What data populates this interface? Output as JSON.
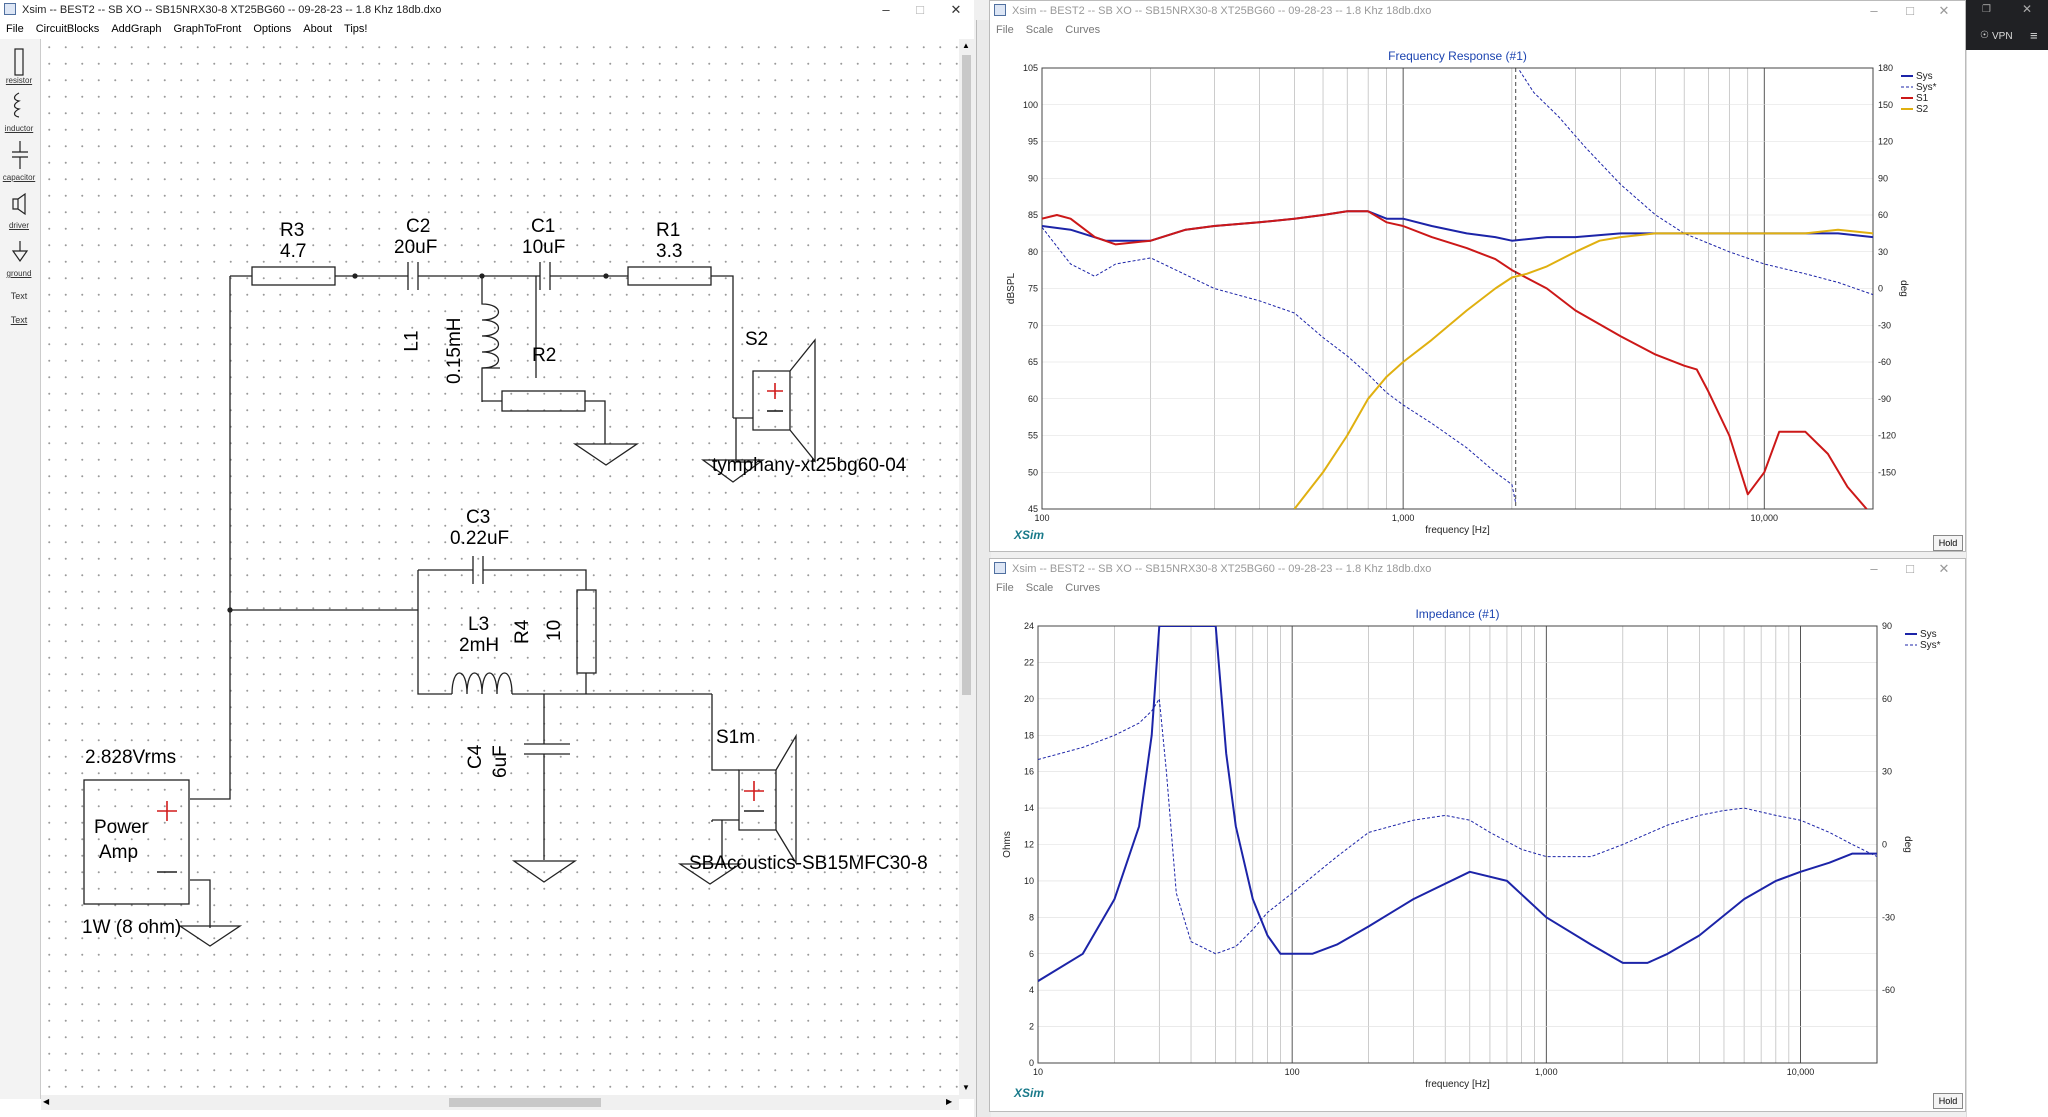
{
  "schematic_window": {
    "title": "Xsim -- BEST2 -- SB XO -- SB15NRX30-8 XT25BG60 -- 09-28-23 -- 1.8 Khz 18db.dxo",
    "menu": [
      "File",
      "CircuitBlocks",
      "AddGraph",
      "GraphToFront",
      "Options",
      "About",
      "Tips!"
    ],
    "tools": [
      "resistor",
      "inductor",
      "capacitor",
      "driver",
      "ground",
      "Text",
      "Text"
    ],
    "components": {
      "r3": {
        "name": "R3",
        "value": "4.7"
      },
      "c2": {
        "name": "C2",
        "value": "20uF"
      },
      "c1": {
        "name": "C1",
        "value": "10uF"
      },
      "r1": {
        "name": "R1",
        "value": "3.3"
      },
      "l1": {
        "name": "L1",
        "value": "0.15mH"
      },
      "r2": {
        "name": "R2"
      },
      "s2": {
        "name": "S2",
        "model": "tymphany-xt25bg60-04"
      },
      "c3": {
        "name": "C3",
        "value": "0.22uF"
      },
      "l3": {
        "name": "L3",
        "value": "2mH"
      },
      "r4": {
        "name": "R4",
        "value": "10"
      },
      "c4": {
        "name": "C4",
        "value": "6uF"
      },
      "s1m": {
        "name": "S1m",
        "model": "SBAcoustics-SB15MFC30-8"
      },
      "amp": {
        "voltage": "2.828Vrms",
        "label1": "Power",
        "label2": "Amp",
        "power": "1W (8 ohm)"
      }
    }
  },
  "freq_window": {
    "title": "Xsim -- BEST2 -- SB XO -- SB15NRX30-8 XT25BG60 -- 09-28-23 -- 1.8 Khz 18db.dxo",
    "menu": [
      "File",
      "Scale",
      "Curves"
    ],
    "hold_label": "Hold",
    "brand": "XSim"
  },
  "imp_window": {
    "title": "Xsim -- BEST2 -- SB XO -- SB15NRX30-8 XT25BG60 -- 09-28-23 -- 1.8 Khz 18db.dxo",
    "menu": [
      "File",
      "Scale",
      "Curves"
    ],
    "hold_label": "Hold",
    "brand": "XSim"
  },
  "right_strip": {
    "vpn_label": "VPN"
  },
  "chart_data": [
    {
      "type": "line",
      "title": "Frequency Response (#1)",
      "xlabel": "frequency [Hz]",
      "ylabel": "dBSPL",
      "y2label": "deg",
      "xscale": "log",
      "xlim": [
        100,
        20000
      ],
      "ylim": [
        45,
        105
      ],
      "y2lim": [
        -180,
        180
      ],
      "xticks": [
        {
          "v": 100,
          "label": "100"
        },
        {
          "v": 1000,
          "label": "1,000"
        },
        {
          "v": 10000,
          "label": "10,000"
        }
      ],
      "yticks": [
        45,
        50,
        55,
        60,
        65,
        70,
        75,
        80,
        85,
        90,
        95,
        100,
        105
      ],
      "y2ticks": [
        -150,
        -120,
        -90,
        -60,
        -30,
        0,
        30,
        60,
        90,
        120,
        150,
        180
      ],
      "grid": true,
      "legend": "top-right",
      "series": [
        {
          "name": "Sys",
          "color": "#1c24a8",
          "axis": "left",
          "width": 2,
          "points": [
            [
              100,
              83.5
            ],
            [
              120,
              83
            ],
            [
              150,
              81.5
            ],
            [
              200,
              81.5
            ],
            [
              250,
              83
            ],
            [
              300,
              83.5
            ],
            [
              400,
              84
            ],
            [
              500,
              84.5
            ],
            [
              600,
              85
            ],
            [
              700,
              85.5
            ],
            [
              800,
              85.5
            ],
            [
              900,
              84.5
            ],
            [
              1000,
              84.5
            ],
            [
              1200,
              83.5
            ],
            [
              1500,
              82.5
            ],
            [
              1800,
              82
            ],
            [
              2000,
              81.5
            ],
            [
              2500,
              82
            ],
            [
              3000,
              82
            ],
            [
              4000,
              82.5
            ],
            [
              5000,
              82.5
            ],
            [
              6000,
              82.5
            ],
            [
              8000,
              82.5
            ],
            [
              10000,
              82.5
            ],
            [
              13000,
              82.5
            ],
            [
              16000,
              82.5
            ],
            [
              20000,
              82
            ]
          ]
        },
        {
          "name": "Sys*",
          "color": "#1c24a8",
          "axis": "right",
          "width": 1,
          "dashed": true,
          "points": [
            [
              100,
              50
            ],
            [
              120,
              20
            ],
            [
              140,
              10
            ],
            [
              160,
              20
            ],
            [
              200,
              25
            ],
            [
              300,
              0
            ],
            [
              400,
              -10
            ],
            [
              500,
              -20
            ],
            [
              600,
              -40
            ],
            [
              700,
              -55
            ],
            [
              800,
              -70
            ],
            [
              900,
              -85
            ],
            [
              1000,
              -95
            ],
            [
              1200,
              -110
            ],
            [
              1500,
              -130
            ],
            [
              1800,
              -150
            ],
            [
              2000,
              -160
            ],
            [
              2050,
              -175
            ],
            [
              2100,
              178
            ],
            [
              2300,
              160
            ],
            [
              2700,
              140
            ],
            [
              3200,
              115
            ],
            [
              4000,
              85
            ],
            [
              5000,
              60
            ],
            [
              6000,
              45
            ],
            [
              8000,
              30
            ],
            [
              10000,
              20
            ],
            [
              13000,
              12
            ],
            [
              16000,
              5
            ],
            [
              20000,
              -5
            ]
          ]
        },
        {
          "name": "S1",
          "color": "#cc1818",
          "axis": "left",
          "width": 2,
          "points": [
            [
              100,
              84.5
            ],
            [
              110,
              85
            ],
            [
              120,
              84.5
            ],
            [
              140,
              82
            ],
            [
              160,
              81
            ],
            [
              200,
              81.5
            ],
            [
              250,
              83
            ],
            [
              300,
              83.5
            ],
            [
              400,
              84
            ],
            [
              500,
              84.5
            ],
            [
              600,
              85
            ],
            [
              700,
              85.5
            ],
            [
              800,
              85.5
            ],
            [
              900,
              84
            ],
            [
              1000,
              83.5
            ],
            [
              1200,
              82
            ],
            [
              1500,
              80.5
            ],
            [
              1800,
              79
            ],
            [
              2000,
              77.5
            ],
            [
              2500,
              75
            ],
            [
              3000,
              72
            ],
            [
              4000,
              68.5
            ],
            [
              5000,
              66
            ],
            [
              6000,
              64.5
            ],
            [
              6500,
              64
            ],
            [
              7000,
              61
            ],
            [
              8000,
              55
            ],
            [
              9000,
              47
            ],
            [
              10000,
              50
            ],
            [
              11000,
              55.5
            ],
            [
              13000,
              55.5
            ],
            [
              15000,
              52.5
            ],
            [
              17000,
              48
            ],
            [
              20000,
              44
            ]
          ]
        },
        {
          "name": "S2",
          "color": "#e0b010",
          "axis": "left",
          "width": 2,
          "points": [
            [
              500,
              45
            ],
            [
              600,
              50
            ],
            [
              700,
              55
            ],
            [
              800,
              60
            ],
            [
              900,
              63
            ],
            [
              1000,
              65
            ],
            [
              1200,
              68
            ],
            [
              1500,
              72
            ],
            [
              1800,
              75
            ],
            [
              2000,
              76.5
            ],
            [
              2200,
              77
            ],
            [
              2500,
              78
            ],
            [
              3000,
              80
            ],
            [
              3500,
              81.5
            ],
            [
              4000,
              82
            ],
            [
              5000,
              82.5
            ],
            [
              6000,
              82.5
            ],
            [
              8000,
              82.5
            ],
            [
              10000,
              82.5
            ],
            [
              13000,
              82.5
            ],
            [
              16000,
              83
            ],
            [
              20000,
              82.5
            ]
          ]
        }
      ]
    },
    {
      "type": "line",
      "title": "Impedance (#1)",
      "xlabel": "frequency [Hz]",
      "ylabel": "Ohms",
      "y2label": "deg",
      "xscale": "log",
      "xlim": [
        10,
        20000
      ],
      "ylim": [
        0,
        24
      ],
      "y2lim": [
        -90,
        90
      ],
      "xticks": [
        {
          "v": 10,
          "label": "10"
        },
        {
          "v": 100,
          "label": "100"
        },
        {
          "v": 1000,
          "label": "1,000"
        },
        {
          "v": 10000,
          "label": "10,000"
        }
      ],
      "yticks": [
        0,
        2,
        4,
        6,
        8,
        10,
        12,
        14,
        16,
        18,
        20,
        22,
        24
      ],
      "y2ticks": [
        -60,
        -30,
        0,
        30,
        60,
        90
      ],
      "grid": true,
      "legend": "top-right",
      "series": [
        {
          "name": "Sys",
          "color": "#1c24a8",
          "axis": "left",
          "width": 2,
          "points": [
            [
              10,
              4.5
            ],
            [
              15,
              6
            ],
            [
              20,
              9
            ],
            [
              25,
              13
            ],
            [
              28,
              18
            ],
            [
              30,
              24
            ],
            [
              50,
              24
            ],
            [
              55,
              17
            ],
            [
              60,
              13
            ],
            [
              70,
              9
            ],
            [
              80,
              7
            ],
            [
              90,
              6
            ],
            [
              100,
              6
            ],
            [
              120,
              6
            ],
            [
              150,
              6.5
            ],
            [
              200,
              7.5
            ],
            [
              300,
              9
            ],
            [
              500,
              10.5
            ],
            [
              700,
              10
            ],
            [
              1000,
              8
            ],
            [
              1500,
              6.5
            ],
            [
              2000,
              5.5
            ],
            [
              2500,
              5.5
            ],
            [
              3000,
              6
            ],
            [
              4000,
              7
            ],
            [
              6000,
              9
            ],
            [
              8000,
              10
            ],
            [
              10000,
              10.5
            ],
            [
              13000,
              11
            ],
            [
              16000,
              11.5
            ],
            [
              20000,
              11.5
            ]
          ]
        },
        {
          "name": "Sys*",
          "color": "#1c24a8",
          "axis": "right",
          "width": 1,
          "dashed": true,
          "points": [
            [
              10,
              35
            ],
            [
              15,
              40
            ],
            [
              20,
              45
            ],
            [
              25,
              50
            ],
            [
              28,
              55
            ],
            [
              30,
              60
            ],
            [
              32,
              30
            ],
            [
              35,
              -20
            ],
            [
              40,
              -40
            ],
            [
              50,
              -45
            ],
            [
              60,
              -42
            ],
            [
              70,
              -35
            ],
            [
              80,
              -28
            ],
            [
              100,
              -20
            ],
            [
              150,
              -5
            ],
            [
              200,
              5
            ],
            [
              300,
              10
            ],
            [
              400,
              12
            ],
            [
              500,
              10
            ],
            [
              600,
              5
            ],
            [
              800,
              -2
            ],
            [
              1000,
              -5
            ],
            [
              1500,
              -5
            ],
            [
              2000,
              0
            ],
            [
              3000,
              8
            ],
            [
              4000,
              12
            ],
            [
              5000,
              14
            ],
            [
              6000,
              15
            ],
            [
              8000,
              12
            ],
            [
              10000,
              10
            ],
            [
              13000,
              5
            ],
            [
              16000,
              0
            ],
            [
              20000,
              -5
            ]
          ]
        }
      ]
    }
  ]
}
